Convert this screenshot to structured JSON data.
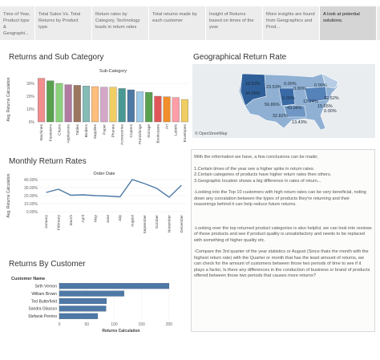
{
  "story": {
    "tabs": [
      {
        "label": "Time of Year, Product type & Geographi...",
        "active": false
      },
      {
        "label": "Total Sales Vs. Total Returns by Product type.",
        "active": false
      },
      {
        "label": "Return rates by Category, Technology leads in return rates",
        "active": false
      },
      {
        "label": "Total returns made by each customer",
        "active": false
      },
      {
        "label": "Insight of Returns based on times of the year",
        "active": false
      },
      {
        "label": "More insights are found from Geographics and Prod...",
        "active": false
      },
      {
        "label": "A look at potential solutions.",
        "active": true
      }
    ]
  },
  "returns_sub_category": {
    "title": "Returns and Sub Category",
    "chart_data": {
      "type": "bar",
      "title": "Sub-Category",
      "ylabel": "Avg. Returns Calculation",
      "ylim": [
        0,
        35
      ],
      "yticks": [
        "30%",
        "20%",
        "10%",
        "0%"
      ],
      "categories": [
        "Machines",
        "Fasteners",
        "Chairs",
        "Appliances",
        "Tables",
        "Binders",
        "Supplies",
        "Paper",
        "Phones",
        "Accessories",
        "Copiers",
        "Furnishings",
        "Storage",
        "Bookcases",
        "Art",
        "Labels",
        "Envelopes"
      ],
      "values": [
        34,
        32,
        30,
        29,
        28.5,
        28,
        27.5,
        27,
        27,
        26,
        25,
        23.5,
        23,
        20,
        19.5,
        19,
        17.5
      ],
      "colors": [
        "#f28e8e",
        "#59a14f",
        "#8cd17d",
        "#b07aa1",
        "#9d7660",
        "#86bcb6",
        "#ffbe7d",
        "#d4a6c8",
        "#f1ce63",
        "#499894",
        "#4e79a7",
        "#a0cbe8",
        "#59a14f",
        "#e15759",
        "#f28e2b",
        "#ff9da7",
        "#f1ce63"
      ]
    }
  },
  "geographical": {
    "title": "Geographical Return Rate",
    "labels": [
      "18.53%",
      "23.53%",
      "0.00%",
      "44.68%",
      "0.00%",
      "0.00%",
      "56.86%",
      "0.00%",
      "13.24%",
      "32.52%",
      "43.06%",
      "15.65%",
      "32.82%",
      "13.43%",
      "0.00%"
    ],
    "credit": "© OpenStreetMap"
  },
  "monthly_returns": {
    "title": "Monthly Return Rates",
    "chart_data": {
      "type": "line",
      "title": "Order Date",
      "ylabel": "Avg. Returns Calculation",
      "ylim": [
        0,
        40
      ],
      "yticks": [
        "40.00%",
        "30.00%",
        "20.00%",
        "10.00%",
        "0.00%"
      ],
      "categories": [
        "January",
        "February",
        "March",
        "April",
        "May",
        "June",
        "July",
        "August",
        "September",
        "October",
        "November",
        "December"
      ],
      "values": [
        24,
        28,
        20.5,
        21,
        20,
        19.5,
        18.5,
        40,
        35,
        29,
        18,
        33
      ]
    }
  },
  "returns_by_customer": {
    "title": "Returns By Customer",
    "chart_data": {
      "type": "bar",
      "title": "Customer Name",
      "xlabel": "Returns Calculation",
      "xlim": [
        0,
        225
      ],
      "xticks": [
        "0",
        "50",
        "100",
        "150",
        "200"
      ],
      "categories": [
        "Seth Vernon",
        "William Brown",
        "Ted Butterfield",
        "Sandra Glassco",
        "Stefanie Perrino"
      ],
      "values": [
        200,
        118,
        86,
        85,
        70
      ]
    }
  },
  "conclusions": {
    "paragraphs": [
      "With the information we have, a few conclusions can be made;",
      "1.Certain times of the year see a higher spike in return rates.\n2.Certain categories of products have higher return rates then others.\n3.Geographic location shows a big difference in rates of return...",
      "-Looking into the Top 10 customers with high return rates can be very beneficial, noting down any cooralation between the types of products they're returning and their reasonings behind it can help reduce future returns.",
      "",
      "-Looking over the top returned product categories is also helpful, we can look into reviews of those products and see if product quality is unsatisfactory and needs to be replaced with something of higher quality etc.",
      "-Compare the 3rd quarter of the year statistics or August (Since thats the month with the highest return rate) with the Quarter or month that has the least amount of returns, we can check for the amount of customers between those two periods of time to see if it plays a factor, Is there any differences in the conduction of business or brand of products offered between those two periods that causes more returns?"
    ]
  }
}
